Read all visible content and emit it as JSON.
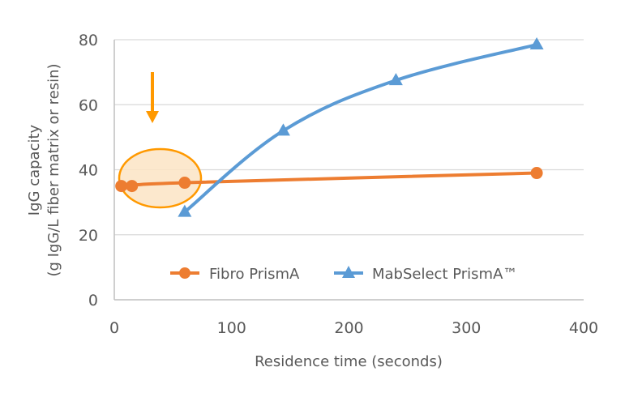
{
  "chart_data": {
    "type": "line",
    "title": "",
    "xlabel": "Residence time (seconds)",
    "ylabel_line1": "IgG capacity",
    "ylabel_line2": "(g IgG/L fiber matrix or resin)",
    "xlim": [
      0,
      400
    ],
    "ylim": [
      0,
      80
    ],
    "x_ticks": [
      0,
      100,
      200,
      300,
      400
    ],
    "y_ticks": [
      0,
      20,
      40,
      60,
      80
    ],
    "grid": "horizontal",
    "legend_position": "inside-bottom",
    "series": [
      {
        "name": "Fibro PrismA",
        "color": "#ED7D31",
        "marker": "circle",
        "x": [
          6,
          15,
          60,
          360
        ],
        "y": [
          35,
          35,
          36,
          39
        ]
      },
      {
        "name": "MabSelect PrismA™",
        "color": "#5B9BD5",
        "marker": "triangle",
        "x": [
          60,
          144,
          240,
          360
        ],
        "y": [
          27,
          52,
          67.5,
          78.5
        ]
      }
    ],
    "annotations": [
      {
        "type": "arrow",
        "direction": "down",
        "color": "#FF9900",
        "x": 32,
        "y_from": 70,
        "y_to": 54
      },
      {
        "type": "ellipse-highlight",
        "color": "#FF9900",
        "fill": "#FCE4C4",
        "cx": 39,
        "cy": 37.5,
        "note": "highlights Fibro PrismA short residence times"
      }
    ]
  },
  "legend": {
    "fibro_label": "Fibro PrismA",
    "mabselect_label": "MabSelect PrismA™"
  }
}
